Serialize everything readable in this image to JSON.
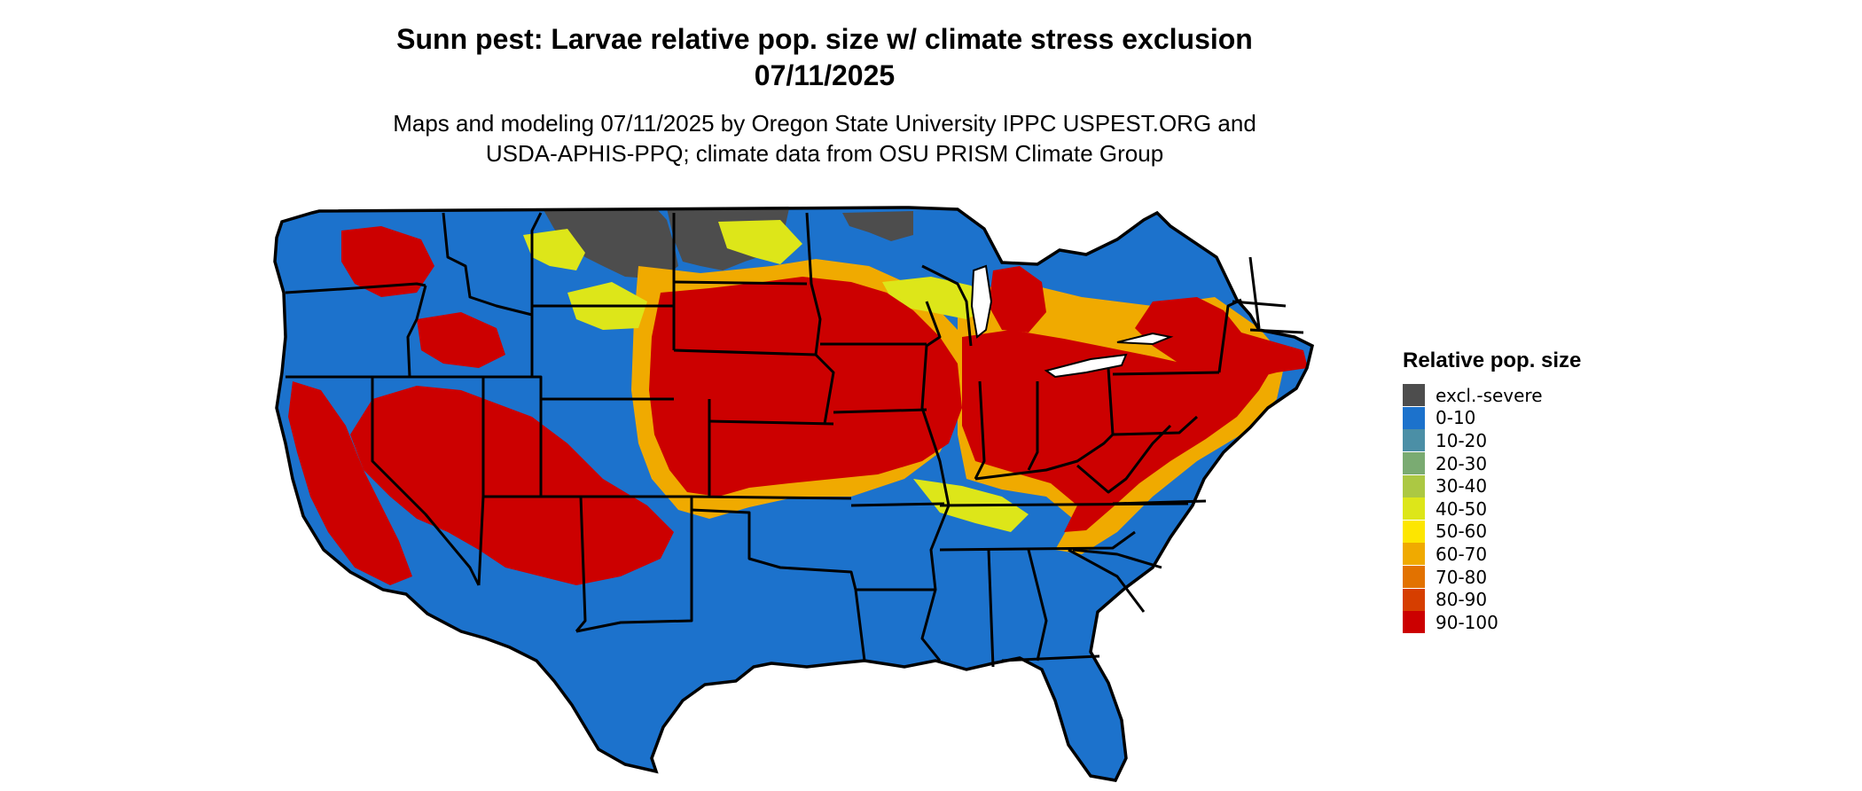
{
  "header": {
    "title_line1": "Sunn pest: Larvae relative pop. size w/ climate stress exclusion",
    "title_line2": "07/11/2025",
    "subtitle_line1": "Maps and modeling 07/11/2025 by Oregon State University IPPC USPEST.ORG and",
    "subtitle_line2": "USDA-APHIS-PPQ; climate data from OSU PRISM Climate Group"
  },
  "legend": {
    "title": "Relative pop. size",
    "items": [
      {
        "label": "excl.-severe",
        "color": "#4d4d4d"
      },
      {
        "label": "0-10",
        "color": "#1c72cc"
      },
      {
        "label": "10-20",
        "color": "#4b8fa6"
      },
      {
        "label": "20-30",
        "color": "#7aab72"
      },
      {
        "label": "30-40",
        "color": "#acc843"
      },
      {
        "label": "40-50",
        "color": "#dde619"
      },
      {
        "label": "50-60",
        "color": "#fde600"
      },
      {
        "label": "60-70",
        "color": "#f0aa00"
      },
      {
        "label": "70-80",
        "color": "#e27200"
      },
      {
        "label": "80-90",
        "color": "#d63e00"
      },
      {
        "label": "90-100",
        "color": "#cc0000"
      }
    ]
  },
  "map": {
    "colors": {
      "base": "#1c72cc",
      "high": "#cc0000",
      "mid": "#f0aa00",
      "low": "#dde619",
      "excl": "#4d4d4d",
      "border": "#000000"
    }
  }
}
